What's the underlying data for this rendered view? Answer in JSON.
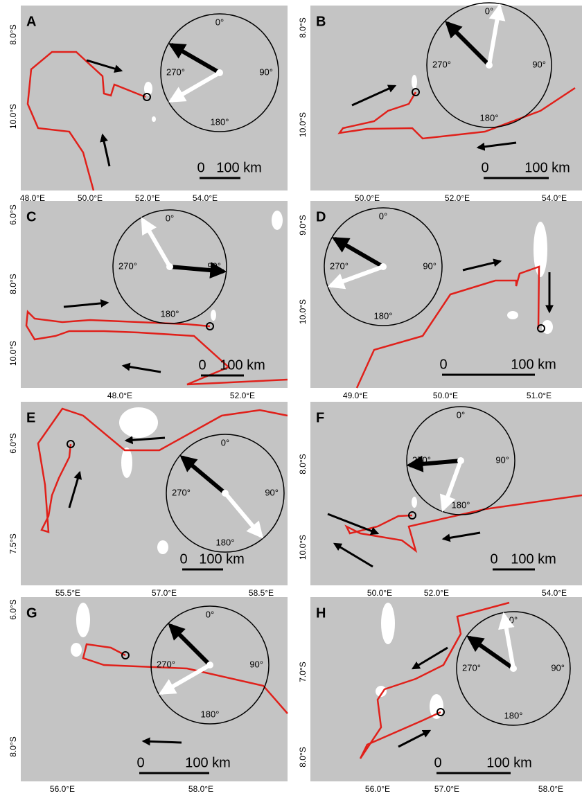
{
  "panels": [
    {
      "label": "A",
      "xticks": [
        "48.0°E",
        "50.0°E",
        "52.0°E",
        "54.0°E"
      ],
      "yticks": [
        "8.0°S",
        "10.0°S"
      ],
      "compass": [
        "0°",
        "90°",
        "180°",
        "270°"
      ],
      "scale": [
        "0",
        "100 km"
      ]
    },
    {
      "label": "B",
      "xticks": [
        "50.0°E",
        "52.0°E",
        "54.0°E"
      ],
      "yticks": [
        "8.0°S",
        "10.0°S"
      ],
      "compass": [
        "0°",
        "90°",
        "180°",
        "270°"
      ],
      "scale": [
        "0",
        "100 km"
      ]
    },
    {
      "label": "C",
      "xticks": [
        "48.0°E",
        "52.0°E"
      ],
      "yticks": [
        "6.0°S",
        "8.0°S",
        "10.0°S"
      ],
      "compass": [
        "0°",
        "90°",
        "180°",
        "270°"
      ],
      "scale": [
        "0",
        "100 km"
      ]
    },
    {
      "label": "D",
      "xticks": [
        "49.0°E",
        "50.0°E",
        "51.0°E"
      ],
      "yticks": [
        "9.0°S",
        "10.0°S"
      ],
      "compass": [
        "0°",
        "90°",
        "180°",
        "270°"
      ],
      "scale": [
        "0",
        "100 km"
      ]
    },
    {
      "label": "E",
      "xticks": [
        "55.5°E",
        "57.0°E",
        "58.5°E"
      ],
      "yticks": [
        "6.0°S",
        "7.5°S"
      ],
      "compass": [
        "0°",
        "90°",
        "180°",
        "270°"
      ],
      "scale": [
        "0",
        "100 km"
      ]
    },
    {
      "label": "F",
      "xticks": [
        "50.0°E",
        "52.0°E",
        "54.0°E"
      ],
      "yticks": [
        "8.0°S",
        "10.0°S"
      ],
      "compass": [
        "0°",
        "90°",
        "180°",
        "270°"
      ],
      "scale": [
        "0",
        "100 km"
      ]
    },
    {
      "label": "G",
      "xticks": [
        "56.0°E",
        "58.0°E"
      ],
      "yticks": [
        "6.0°S",
        "8.0°S"
      ],
      "compass": [
        "0°",
        "90°",
        "180°",
        "270°"
      ],
      "scale": [
        "0",
        "100 km"
      ]
    },
    {
      "label": "H",
      "xticks": [
        "56.0°E",
        "57.0°E",
        "58.0°E"
      ],
      "yticks": [
        "7.0°S",
        "8.0°S"
      ],
      "compass": [
        "0°",
        "90°",
        "180°",
        "270°"
      ],
      "scale": [
        "0",
        "100 km"
      ]
    }
  ]
}
